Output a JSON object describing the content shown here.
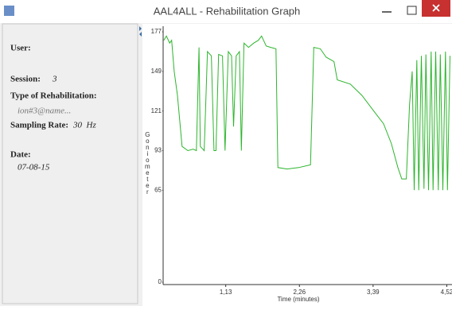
{
  "window": {
    "title": "AAL4ALL - Rehabilitation Graph"
  },
  "sidebar": {
    "user_label": "User:",
    "session_label": "Session:",
    "session": "3",
    "type_label": "Type of Rehabilitation:",
    "type": "ion#3@name...",
    "rate_label": "Sampling Rate:",
    "rate": "30  Hz",
    "date_label": "Date:",
    "date": "07-08-15"
  },
  "chart_data": {
    "type": "line",
    "y_label": "Goniometer",
    "x_label": "Time (minutes)",
    "x": [
      0.18,
      0.22,
      0.27,
      0.3,
      0.34,
      0.39,
      0.46,
      0.55,
      0.63,
      0.68,
      0.72,
      0.74,
      0.8,
      0.85,
      0.91,
      0.95,
      0.98,
      1.02,
      1.08,
      1.12,
      1.17,
      1.22,
      1.25,
      1.29,
      1.34,
      1.37,
      1.41,
      1.48,
      1.56,
      1.63,
      1.68,
      1.75,
      1.82,
      1.9,
      1.93,
      2.07,
      2.25,
      2.43,
      2.48,
      2.58,
      2.67,
      2.79,
      2.84,
      3.04,
      3.22,
      3.4,
      3.55,
      3.67,
      3.77,
      3.83,
      3.9,
      3.95,
      3.99,
      4.02,
      4.06,
      4.09,
      4.13,
      4.17,
      4.2,
      4.24,
      4.28,
      4.31,
      4.35,
      4.39,
      4.42,
      4.46,
      4.5,
      4.53,
      4.57
    ],
    "series": [
      {
        "color": "#2db52d",
        "values": [
          171,
          174,
          169,
          171,
          149,
          132,
          96,
          93,
          94,
          93,
          166,
          96,
          93,
          163,
          160,
          93,
          93,
          161,
          160,
          93,
          163,
          160,
          110,
          160,
          163,
          93,
          169,
          166,
          169,
          171,
          174,
          167,
          166,
          165,
          81,
          80,
          81,
          83,
          166,
          165,
          159,
          156,
          143,
          140,
          132,
          121,
          112,
          98,
          81,
          73,
          73,
          126,
          149,
          65,
          157,
          65,
          160,
          66,
          161,
          65,
          163,
          65,
          163,
          65,
          161,
          65,
          163,
          65,
          160
        ]
      }
    ],
    "xlim": [
      0.17,
      4.6
    ],
    "ylim": [
      0,
      177
    ],
    "xticks": [
      {
        "value": 1.13,
        "label": "1,13"
      },
      {
        "value": 2.26,
        "label": "2,26"
      },
      {
        "value": 3.39,
        "label": "3,39"
      },
      {
        "value": 4.52,
        "label": "4,52"
      }
    ],
    "yticks": [
      0,
      65,
      93,
      121,
      149,
      177
    ]
  }
}
